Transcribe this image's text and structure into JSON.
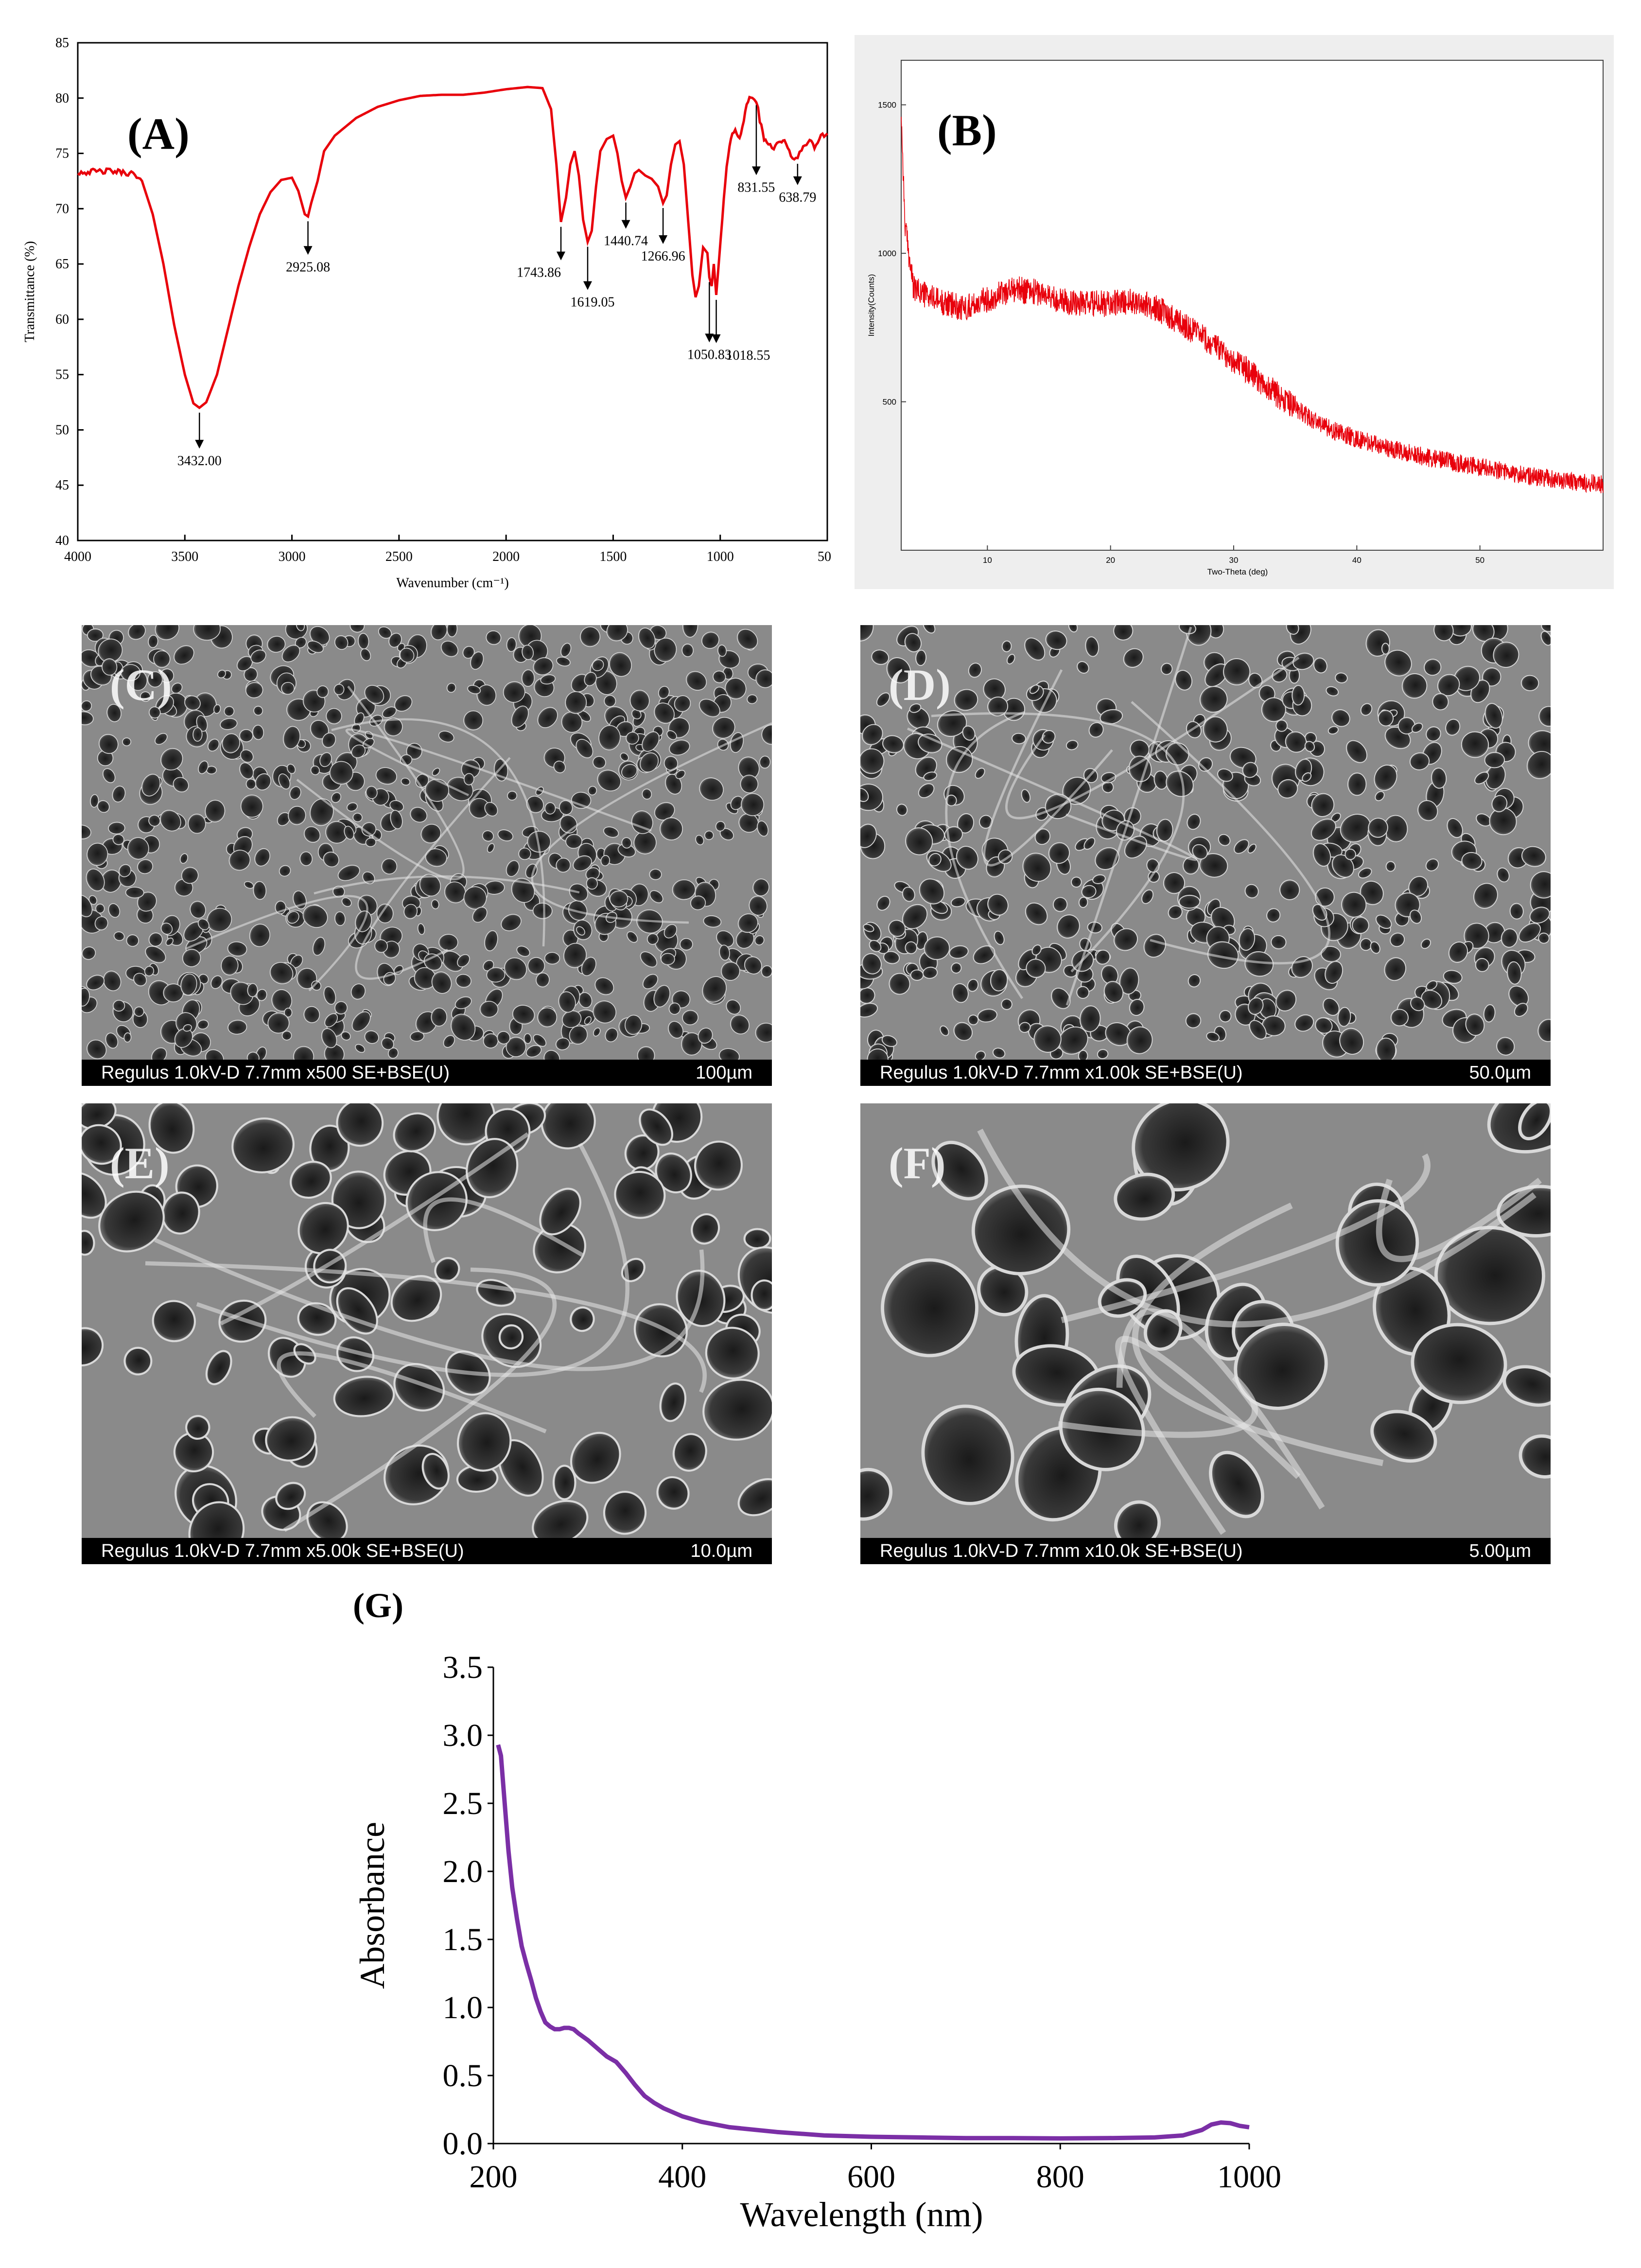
{
  "panels": {
    "a_label": "(A)",
    "b_label": "(B)",
    "c_label": "(C)",
    "d_label": "(D)",
    "e_label": "(E)",
    "f_label": "(F)",
    "g_label": "(G)"
  },
  "chart_data": [
    {
      "id": "A",
      "type": "line",
      "title": "",
      "xlabel": "Wavenumber (cm⁻¹)",
      "ylabel": "Transmittance (%)",
      "xlim": [
        4000,
        500
      ],
      "ylim": [
        40,
        85
      ],
      "x_ticks": [
        "4000",
        "3500",
        "3000",
        "2500",
        "2000",
        "1500",
        "1000",
        "50"
      ],
      "y_ticks": [
        "40",
        "45",
        "50",
        "55",
        "60",
        "65",
        "70",
        "75",
        "80",
        "85"
      ],
      "line_color": "#e8000b",
      "points": [
        [
          4000,
          73.3
        ],
        [
          3850,
          73.4
        ],
        [
          3750,
          73.2
        ],
        [
          3700,
          72.5
        ],
        [
          3650,
          69.5
        ],
        [
          3600,
          65
        ],
        [
          3550,
          59.5
        ],
        [
          3500,
          55
        ],
        [
          3460,
          52.4
        ],
        [
          3432,
          52.0
        ],
        [
          3400,
          52.5
        ],
        [
          3350,
          55
        ],
        [
          3300,
          59
        ],
        [
          3250,
          63
        ],
        [
          3200,
          66.5
        ],
        [
          3150,
          69.5
        ],
        [
          3100,
          71.5
        ],
        [
          3050,
          72.6
        ],
        [
          3000,
          72.8
        ],
        [
          2970,
          71.6
        ],
        [
          2940,
          69.5
        ],
        [
          2925,
          69.3
        ],
        [
          2910,
          70.5
        ],
        [
          2880,
          72.5
        ],
        [
          2850,
          75.2
        ],
        [
          2800,
          76.6
        ],
        [
          2700,
          78.2
        ],
        [
          2600,
          79.2
        ],
        [
          2500,
          79.8
        ],
        [
          2400,
          80.2
        ],
        [
          2300,
          80.3
        ],
        [
          2200,
          80.3
        ],
        [
          2100,
          80.5
        ],
        [
          2000,
          80.8
        ],
        [
          1900,
          81.0
        ],
        [
          1830,
          80.9
        ],
        [
          1790,
          79.0
        ],
        [
          1765,
          74.0
        ],
        [
          1743.86,
          68.8
        ],
        [
          1720,
          71.0
        ],
        [
          1700,
          74.0
        ],
        [
          1680,
          75.2
        ],
        [
          1660,
          73.0
        ],
        [
          1640,
          69.0
        ],
        [
          1619.05,
          67.0
        ],
        [
          1600,
          68.0
        ],
        [
          1580,
          72.0
        ],
        [
          1560,
          75.2
        ],
        [
          1530,
          76.3
        ],
        [
          1500,
          76.6
        ],
        [
          1480,
          75.0
        ],
        [
          1460,
          72.5
        ],
        [
          1440.74,
          71.0
        ],
        [
          1420,
          72.0
        ],
        [
          1400,
          73.2
        ],
        [
          1380,
          73.5
        ],
        [
          1350,
          73.0
        ],
        [
          1320,
          72.7
        ],
        [
          1290,
          72.0
        ],
        [
          1266.96,
          70.5
        ],
        [
          1250,
          71.2
        ],
        [
          1230,
          74.0
        ],
        [
          1210,
          75.8
        ],
        [
          1190,
          76.1
        ],
        [
          1170,
          74.0
        ],
        [
          1150,
          69.0
        ],
        [
          1130,
          64.0
        ],
        [
          1115,
          62.0
        ],
        [
          1100,
          63.0
        ],
        [
          1080,
          66.5
        ],
        [
          1060,
          66.0
        ],
        [
          1050.83,
          63.8
        ],
        [
          1040,
          63.0
        ],
        [
          1030,
          65.0
        ],
        [
          1018.55,
          62.2
        ],
        [
          1005,
          65.5
        ],
        [
          990,
          69.0
        ],
        [
          970,
          74.0
        ],
        [
          950,
          76.5
        ],
        [
          930,
          77.0
        ],
        [
          910,
          76.5
        ],
        [
          890,
          78.0
        ],
        [
          870,
          79.8
        ],
        [
          850,
          80.1
        ],
        [
          831.55,
          79.8
        ],
        [
          815,
          78.0
        ],
        [
          795,
          76.2
        ],
        [
          775,
          76.0
        ],
        [
          750,
          75.5
        ],
        [
          720,
          76.2
        ],
        [
          700,
          76.0
        ],
        [
          670,
          74.8
        ],
        [
          638.79,
          74.5
        ],
        [
          620,
          75.3
        ],
        [
          590,
          76.2
        ],
        [
          560,
          75.6
        ],
        [
          530,
          76.5
        ],
        [
          500,
          76.8
        ]
      ],
      "annotations": [
        {
          "x": 3432.0,
          "y": 52.0,
          "label": "3432.00"
        },
        {
          "x": 2925.08,
          "y": 69.3,
          "label": "2925.08"
        },
        {
          "x": 1743.86,
          "y": 68.8,
          "label": "1743.86"
        },
        {
          "x": 1619.05,
          "y": 67.0,
          "label": "1619.05"
        },
        {
          "x": 1440.74,
          "y": 71.0,
          "label": "1440.74"
        },
        {
          "x": 1266.96,
          "y": 70.5,
          "label": "1266.96"
        },
        {
          "x": 1050.83,
          "y": 63.8,
          "label": "1050.83"
        },
        {
          "x": 1018.55,
          "y": 62.2,
          "label": "1018.55"
        },
        {
          "x": 831.55,
          "y": 79.8,
          "label": "831.55"
        },
        {
          "x": 638.79,
          "y": 74.5,
          "label": "638.79"
        }
      ]
    },
    {
      "id": "B",
      "type": "line",
      "title": "",
      "xlabel": "Two-Theta (deg)",
      "ylabel": "Intensity(Counts)",
      "xlim": [
        3,
        60
      ],
      "ylim": [
        0,
        1650
      ],
      "x_ticks": [
        "10",
        "20",
        "30",
        "40",
        "50"
      ],
      "y_ticks": [
        "500",
        "1000",
        "1500"
      ],
      "line_color": "#e8000b",
      "envelope": [
        [
          3,
          1480
        ],
        [
          3.3,
          1100
        ],
        [
          4,
          880
        ],
        [
          6,
          840
        ],
        [
          8,
          815
        ],
        [
          10,
          845
        ],
        [
          12,
          880
        ],
        [
          14,
          870
        ],
        [
          16,
          840
        ],
        [
          18,
          830
        ],
        [
          20,
          830
        ],
        [
          22,
          840
        ],
        [
          24,
          810
        ],
        [
          26,
          760
        ],
        [
          28,
          700
        ],
        [
          30,
          640
        ],
        [
          32,
          575
        ],
        [
          34,
          510
        ],
        [
          36,
          450
        ],
        [
          38,
          405
        ],
        [
          40,
          375
        ],
        [
          42,
          350
        ],
        [
          44,
          330
        ],
        [
          46,
          310
        ],
        [
          48,
          295
        ],
        [
          50,
          280
        ],
        [
          52,
          265
        ],
        [
          54,
          250
        ],
        [
          56,
          240
        ],
        [
          58,
          230
        ],
        [
          60,
          220
        ]
      ],
      "noise_amplitude": 45
    },
    {
      "id": "G",
      "type": "line",
      "title": "",
      "xlabel": "Wavelength (nm)",
      "ylabel": "Absorbance",
      "xlim": [
        200,
        1000
      ],
      "ylim": [
        0,
        3.5
      ],
      "x_ticks": [
        "200",
        "400",
        "600",
        "800",
        "1000"
      ],
      "y_ticks": [
        "0.0",
        "0.5",
        "1.0",
        "1.5",
        "2.0",
        "2.5",
        "3.0",
        "3.5"
      ],
      "line_color": "#7b2fa6",
      "points": [
        [
          205,
          2.93
        ],
        [
          208,
          2.85
        ],
        [
          212,
          2.5
        ],
        [
          216,
          2.15
        ],
        [
          220,
          1.88
        ],
        [
          225,
          1.65
        ],
        [
          230,
          1.45
        ],
        [
          235,
          1.32
        ],
        [
          240,
          1.2
        ],
        [
          245,
          1.07
        ],
        [
          250,
          0.97
        ],
        [
          255,
          0.89
        ],
        [
          260,
          0.86
        ],
        [
          265,
          0.84
        ],
        [
          270,
          0.84
        ],
        [
          275,
          0.85
        ],
        [
          280,
          0.85
        ],
        [
          285,
          0.84
        ],
        [
          290,
          0.81
        ],
        [
          300,
          0.76
        ],
        [
          310,
          0.7
        ],
        [
          320,
          0.64
        ],
        [
          330,
          0.6
        ],
        [
          340,
          0.52
        ],
        [
          350,
          0.43
        ],
        [
          360,
          0.35
        ],
        [
          370,
          0.3
        ],
        [
          380,
          0.26
        ],
        [
          400,
          0.2
        ],
        [
          420,
          0.16
        ],
        [
          450,
          0.12
        ],
        [
          500,
          0.085
        ],
        [
          550,
          0.06
        ],
        [
          600,
          0.05
        ],
        [
          650,
          0.045
        ],
        [
          700,
          0.04
        ],
        [
          750,
          0.04
        ],
        [
          800,
          0.038
        ],
        [
          850,
          0.04
        ],
        [
          900,
          0.045
        ],
        [
          930,
          0.06
        ],
        [
          950,
          0.1
        ],
        [
          960,
          0.14
        ],
        [
          970,
          0.155
        ],
        [
          980,
          0.15
        ],
        [
          990,
          0.13
        ],
        [
          1000,
          0.12
        ]
      ]
    }
  ],
  "sem_images": [
    {
      "id": "C",
      "instrument": "Regulus 1.0kV-D 7.7mm x500 SE+BSE(U)",
      "scale": "100µm"
    },
    {
      "id": "D",
      "instrument": "Regulus 1.0kV-D 7.7mm x1.00k SE+BSE(U)",
      "scale": "50.0µm"
    },
    {
      "id": "E",
      "instrument": "Regulus 1.0kV-D 7.7mm x5.00k SE+BSE(U)",
      "scale": "10.0µm"
    },
    {
      "id": "F",
      "instrument": "Regulus 1.0kV-D 7.7mm x10.0k SE+BSE(U)",
      "scale": "5.00µm"
    }
  ]
}
